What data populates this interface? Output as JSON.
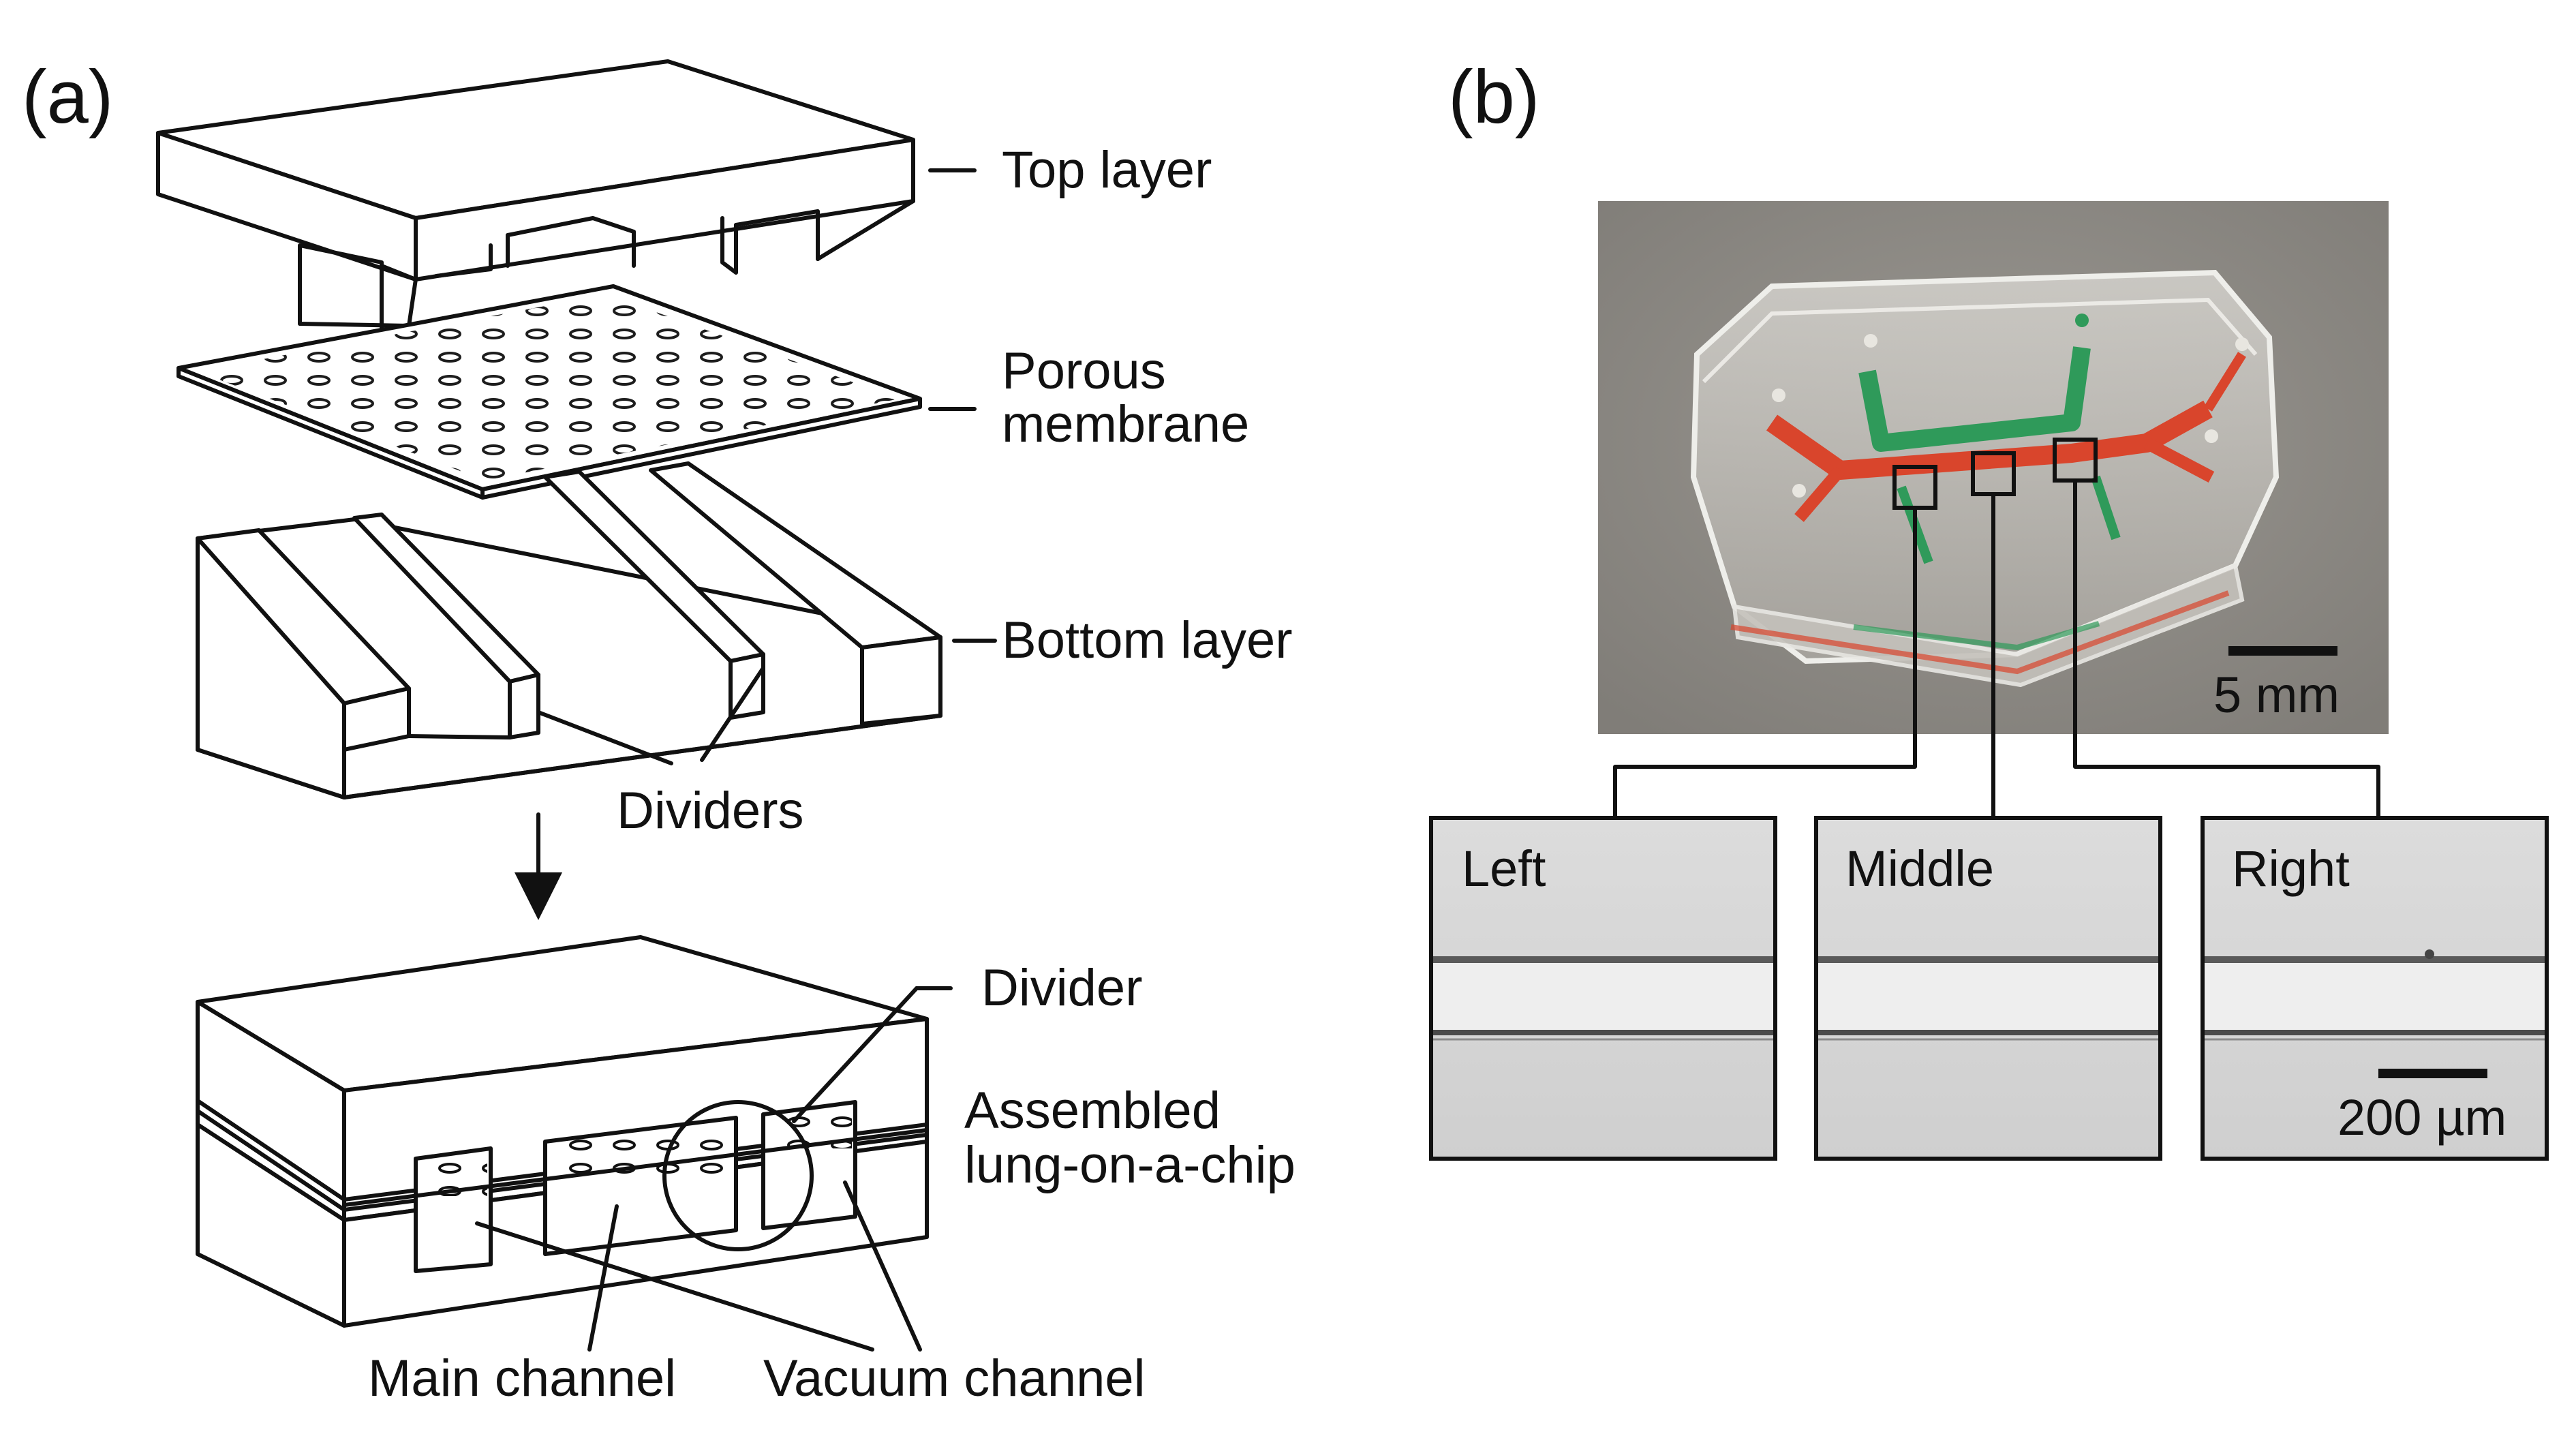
{
  "panels": {
    "a": "(a)",
    "b": "(b)"
  },
  "labels_a": {
    "top_layer": "Top layer",
    "porous_1": "Porous",
    "porous_2": "membrane",
    "bottom_layer": "Bottom layer",
    "dividers": "Dividers",
    "divider": "Divider",
    "assembled_1": "Assembled",
    "assembled_2": "lung-on-a-chip",
    "main_channel": "Main channel",
    "vacuum_channel": "Vacuum channel"
  },
  "labels_b": {
    "scale_photo": "5 mm",
    "left": "Left",
    "middle": "Middle",
    "right": "Right",
    "scale_micro": "200 µm"
  },
  "colors": {
    "photo_background": "#8f8c87",
    "main_channel_fluid": "#d9452c",
    "vacuum_channel_fluid": "#2f9a5a",
    "micrograph_background": "#d6d6d6"
  }
}
